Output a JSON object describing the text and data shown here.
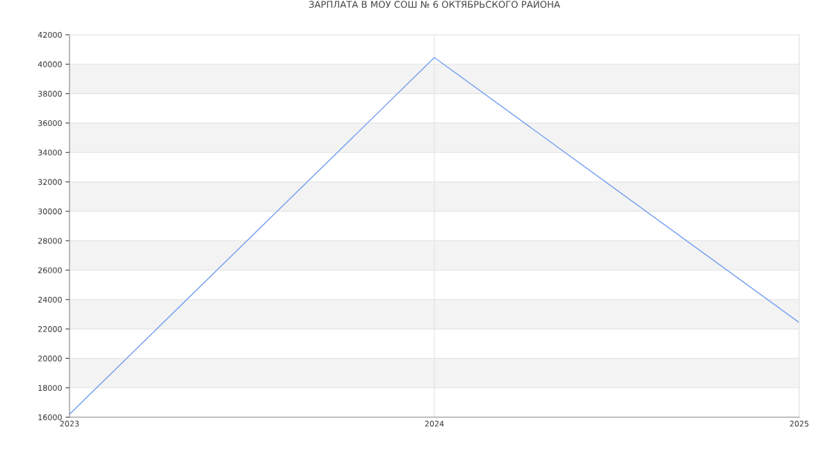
{
  "chart_data": {
    "type": "line",
    "title": "ЗАРПЛАТА В МОУ СОШ № 6 ОКТЯБРЬСКОГО РАЙОНА",
    "x": [
      2023,
      2024,
      2025
    ],
    "series": [
      {
        "color": "#6f9cf0",
        "values": [
          16200,
          40450,
          22430
        ]
      }
    ],
    "xlim": [
      2023,
      2025
    ],
    "xticks": [
      2023,
      2024,
      2025
    ],
    "ylim": [
      16000,
      42000
    ],
    "yticks": [
      16000,
      18000,
      20000,
      22000,
      24000,
      26000,
      28000,
      30000,
      32000,
      34000,
      36000,
      38000,
      40000,
      42000
    ],
    "grid": true,
    "legend": false,
    "marker": "none",
    "line_style": "solid"
  }
}
